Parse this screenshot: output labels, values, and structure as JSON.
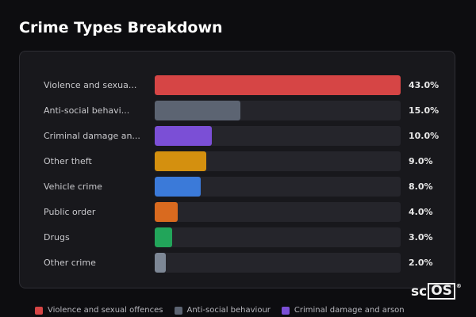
{
  "title": "Crime Types Breakdown",
  "chart_data": {
    "type": "bar",
    "orientation": "horizontal",
    "categories": [
      "Violence and sexual offences",
      "Anti-social behaviour",
      "Criminal damage and arson",
      "Other theft",
      "Vehicle crime",
      "Public order",
      "Drugs",
      "Other crime"
    ],
    "labels_display": [
      "Violence and sexua...",
      "Anti-social behavi...",
      "Criminal damage an...",
      "Other theft",
      "Vehicle crime",
      "Public order",
      "Drugs",
      "Other crime"
    ],
    "values": [
      43.0,
      15.0,
      10.0,
      9.0,
      8.0,
      4.0,
      3.0,
      2.0
    ],
    "value_labels": [
      "43.0%",
      "15.0%",
      "10.0%",
      "9.0%",
      "8.0%",
      "4.0%",
      "3.0%",
      "2.0%"
    ],
    "colors": [
      "#d64545",
      "#5c6472",
      "#7b4fd6",
      "#d4900f",
      "#3b7ad9",
      "#d96a1f",
      "#22a55a",
      "#7d8795"
    ],
    "xlim": [
      0,
      43
    ],
    "legend_placement": "bottom",
    "legend_visible_entries": [
      "Violence and sexual offences",
      "Anti-social behaviour",
      "Criminal damage and arson"
    ]
  },
  "logo": {
    "prefix": "sc",
    "boxed": "OS",
    "mark": "®"
  }
}
